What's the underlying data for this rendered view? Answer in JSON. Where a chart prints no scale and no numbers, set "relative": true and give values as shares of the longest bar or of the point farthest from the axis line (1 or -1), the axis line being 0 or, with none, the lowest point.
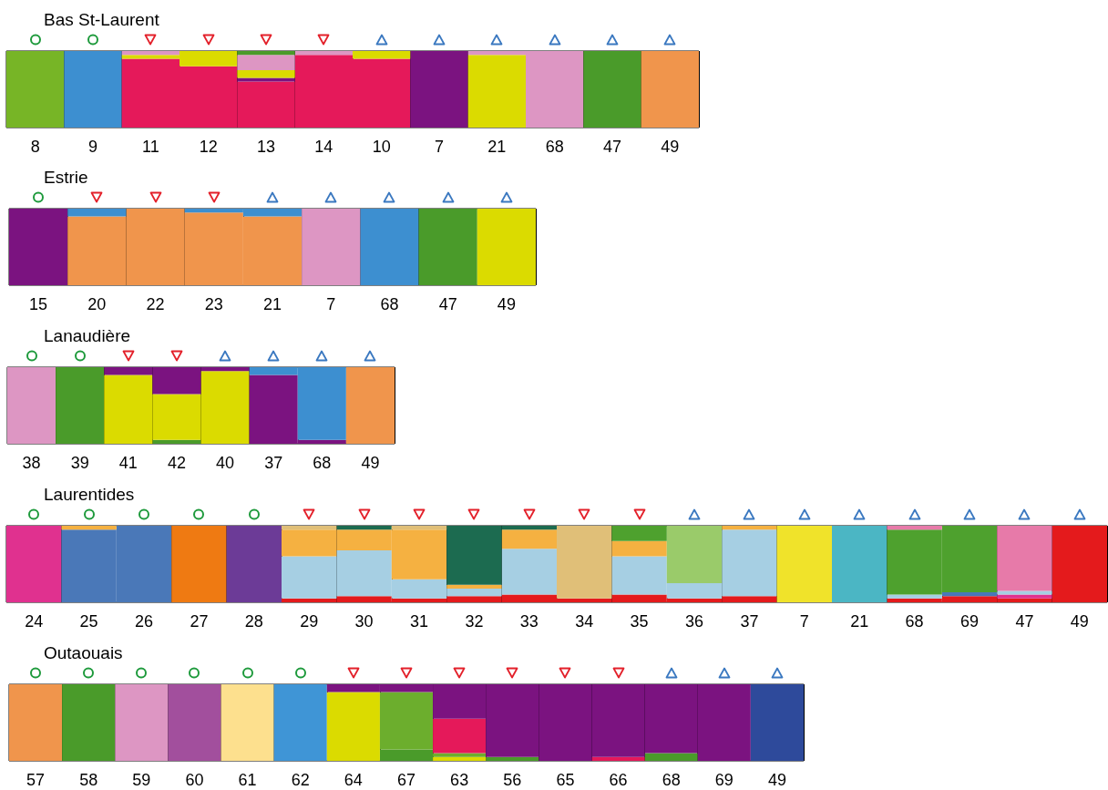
{
  "chart_data": [
    {
      "type": "bar",
      "title": "Bas St-Laurent",
      "stacked": true,
      "relative": true,
      "grid": "x",
      "categories": [
        "8",
        "9",
        "11",
        "12",
        "13",
        "14",
        "10",
        "7",
        "21",
        "68",
        "47",
        "49"
      ],
      "series": [
        {
          "color": "#77b526",
          "values": [
            1,
            0,
            0,
            0,
            0,
            0,
            0,
            0,
            0,
            0,
            0,
            0
          ]
        },
        {
          "color": "#3d8fd0",
          "values": [
            0,
            1,
            0,
            0,
            0,
            0,
            0,
            0,
            0,
            0,
            0,
            0
          ]
        },
        {
          "color": "#e5195a",
          "values": [
            0,
            0,
            0.9,
            0.8,
            0.6,
            0.95,
            0.9,
            0,
            0,
            0,
            0,
            0
          ]
        },
        {
          "color": "#7b1380",
          "values": [
            0,
            0,
            0,
            0,
            0.05,
            0,
            0,
            1,
            0,
            0,
            0,
            0
          ]
        },
        {
          "color": "#dbdb00",
          "values": [
            0,
            0,
            0.05,
            0.2,
            0.1,
            0,
            0.1,
            0,
            0.95,
            0,
            0,
            0
          ]
        },
        {
          "color": "#dd96c3",
          "values": [
            0,
            0,
            0.05,
            0,
            0.2,
            0.05,
            0,
            0,
            0.05,
            1,
            0,
            0
          ]
        },
        {
          "color": "#4a9b2a",
          "values": [
            0,
            0,
            0,
            0,
            0.05,
            0,
            0,
            0,
            0,
            0,
            1,
            0
          ]
        },
        {
          "color": "#f0954c",
          "values": [
            0,
            0,
            0,
            0,
            0,
            0,
            0,
            0,
            0,
            0,
            0,
            1
          ]
        }
      ]
    },
    {
      "type": "bar",
      "title": "Estrie",
      "stacked": true,
      "relative": true,
      "grid": "x",
      "categories": [
        "15",
        "20",
        "22",
        "23",
        "21",
        "7",
        "68",
        "47",
        "49"
      ],
      "series": [
        {
          "color": "#7b1380",
          "values": [
            1,
            0,
            0,
            0,
            0,
            0,
            0,
            0,
            0
          ]
        },
        {
          "color": "#f0954c",
          "values": [
            0,
            0.9,
            1,
            0.95,
            0.9,
            0,
            0,
            0,
            0
          ]
        },
        {
          "color": "#3d8fd0",
          "values": [
            0,
            0.1,
            0,
            0.05,
            0.1,
            0,
            1,
            0,
            0
          ]
        },
        {
          "color": "#dd96c3",
          "values": [
            0,
            0,
            0,
            0,
            0,
            1,
            0,
            0,
            0
          ]
        },
        {
          "color": "#4a9b2a",
          "values": [
            0,
            0,
            0,
            0,
            0,
            0,
            0,
            1,
            0
          ]
        },
        {
          "color": "#dbdb00",
          "values": [
            0,
            0,
            0,
            0,
            0,
            0,
            0,
            0,
            1
          ]
        }
      ]
    },
    {
      "type": "bar",
      "title": "Lanaudière",
      "stacked": true,
      "relative": true,
      "grid": "x",
      "categories": [
        "38",
        "39",
        "41",
        "42",
        "40",
        "37",
        "68",
        "49"
      ],
      "series": [
        {
          "color": "#dd96c3",
          "values": [
            1,
            0,
            0,
            0,
            0,
            0,
            0,
            0
          ]
        },
        {
          "color": "#4a9b2a",
          "values": [
            0,
            1,
            0,
            0.05,
            0,
            0,
            0,
            0
          ]
        },
        {
          "color": "#dbdb00",
          "values": [
            0,
            0,
            0.9,
            0.6,
            0.95,
            0,
            0,
            0
          ]
        },
        {
          "color": "#7b1380",
          "values": [
            0,
            0,
            0.1,
            0.35,
            0.05,
            0.9,
            0.05,
            0
          ]
        },
        {
          "color": "#3d8fd0",
          "values": [
            0,
            0,
            0,
            0,
            0,
            0.1,
            0.95,
            0
          ]
        },
        {
          "color": "#f0954c",
          "values": [
            0,
            0,
            0,
            0,
            0,
            0,
            0,
            1
          ]
        }
      ]
    },
    {
      "type": "bar",
      "title": "Laurentides",
      "stacked": true,
      "relative": true,
      "grid": "x",
      "categories": [
        "24",
        "25",
        "26",
        "27",
        "28",
        "29",
        "30",
        "31",
        "32",
        "33",
        "34",
        "35",
        "36",
        "37",
        "7",
        "21",
        "68",
        "69",
        "47",
        "49"
      ],
      "series": [
        {
          "color": "#e41a1c",
          "values": [
            0,
            0,
            0,
            0,
            0,
            0.05,
            0.08,
            0.05,
            0.08,
            0.1,
            0.05,
            0.1,
            0.05,
            0.08,
            0,
            0,
            0.05,
            0.08,
            0.05,
            1
          ]
        },
        {
          "color": "#e0318f",
          "values": [
            1,
            0,
            0,
            0,
            0,
            0,
            0,
            0,
            0,
            0,
            0,
            0,
            0,
            0,
            0,
            0,
            0,
            0,
            0.05,
            0
          ]
        },
        {
          "color": "#4a78b8",
          "values": [
            0,
            0.95,
            1,
            0,
            0,
            0,
            0,
            0,
            0,
            0,
            0,
            0,
            0,
            0,
            0,
            0,
            0,
            0.05,
            0,
            0
          ]
        },
        {
          "color": "#ef7a12",
          "values": [
            0,
            0,
            0,
            1,
            0,
            0,
            0,
            0,
            0,
            0,
            0,
            0,
            0,
            0,
            0,
            0,
            0,
            0,
            0,
            0
          ]
        },
        {
          "color": "#6c3b97",
          "values": [
            0,
            0,
            0,
            0,
            1,
            0,
            0,
            0,
            0,
            0,
            0,
            0,
            0,
            0,
            0,
            0,
            0,
            0,
            0,
            0
          ]
        },
        {
          "color": "#a6cfe3",
          "values": [
            0,
            0,
            0,
            0,
            0,
            0.55,
            0.6,
            0.25,
            0.1,
            0.6,
            0,
            0.5,
            0.2,
            0.87,
            0,
            0,
            0.05,
            0,
            0.05,
            0
          ]
        },
        {
          "color": "#f5b141",
          "values": [
            0,
            0.05,
            0,
            0,
            0,
            0.35,
            0.27,
            0.65,
            0.05,
            0.25,
            0,
            0.2,
            0,
            0.05,
            0,
            0,
            0,
            0,
            0,
            0
          ]
        },
        {
          "color": "#1c6b50",
          "values": [
            0,
            0,
            0,
            0,
            0,
            0,
            0.05,
            0,
            0.77,
            0.05,
            0,
            0,
            0,
            0,
            0,
            0,
            0,
            0,
            0,
            0
          ]
        },
        {
          "color": "#e0bf78",
          "values": [
            0,
            0,
            0,
            0,
            0,
            0.05,
            0,
            0.05,
            0,
            0,
            0.95,
            0,
            0,
            0,
            0,
            0,
            0,
            0,
            0,
            0
          ]
        },
        {
          "color": "#9acb6a",
          "values": [
            0,
            0,
            0,
            0,
            0,
            0,
            0,
            0,
            0,
            0,
            0,
            0,
            0.75,
            0,
            0,
            0,
            0,
            0,
            0,
            0
          ]
        },
        {
          "color": "#f0e32a",
          "values": [
            0,
            0,
            0,
            0,
            0,
            0,
            0,
            0,
            0,
            0,
            0,
            0,
            0,
            0,
            1,
            0,
            0,
            0,
            0,
            0
          ]
        },
        {
          "color": "#4bb6c4",
          "values": [
            0,
            0,
            0,
            0,
            0,
            0,
            0,
            0,
            0,
            0,
            0,
            0,
            0,
            0,
            0,
            1,
            0,
            0,
            0,
            0
          ]
        },
        {
          "color": "#4ea12e",
          "values": [
            0,
            0,
            0,
            0,
            0,
            0,
            0,
            0,
            0,
            0,
            0,
            0.2,
            0,
            0,
            0,
            0,
            0.85,
            0.87,
            0,
            0
          ]
        },
        {
          "color": "#e77aa9",
          "values": [
            0,
            0,
            0,
            0,
            0,
            0,
            0,
            0,
            0,
            0,
            0,
            0,
            0,
            0,
            0,
            0,
            0.05,
            0,
            0.85,
            0
          ]
        }
      ]
    },
    {
      "type": "bar",
      "title": "Outaouais",
      "stacked": true,
      "relative": true,
      "grid": "x",
      "categories": [
        "57",
        "58",
        "59",
        "60",
        "61",
        "62",
        "64",
        "67",
        "63",
        "56",
        "65",
        "66",
        "68",
        "69",
        "49"
      ],
      "series": [
        {
          "color": "#f0954c",
          "values": [
            1,
            0,
            0,
            0,
            0,
            0,
            0,
            0,
            0,
            0,
            0,
            0,
            0,
            0,
            0
          ]
        },
        {
          "color": "#4a9b2a",
          "values": [
            0,
            1,
            0,
            0,
            0,
            0,
            0,
            0.15,
            0,
            0.05,
            0,
            0,
            0.1,
            0,
            0
          ]
        },
        {
          "color": "#dd96c3",
          "values": [
            0,
            0,
            1,
            0,
            0,
            0,
            0,
            0,
            0,
            0,
            0,
            0,
            0,
            0,
            0
          ]
        },
        {
          "color": "#a24f9d",
          "values": [
            0,
            0,
            0,
            1,
            0,
            0,
            0,
            0,
            0,
            0,
            0,
            0,
            0,
            0,
            0
          ]
        },
        {
          "color": "#fde08e",
          "values": [
            0,
            0,
            0,
            0,
            1,
            0,
            0,
            0,
            0,
            0,
            0,
            0,
            0,
            0,
            0
          ]
        },
        {
          "color": "#3f95d6",
          "values": [
            0,
            0,
            0,
            0,
            0,
            1,
            0,
            0,
            0,
            0,
            0,
            0,
            0,
            0,
            0
          ]
        },
        {
          "color": "#dbdb00",
          "values": [
            0,
            0,
            0,
            0,
            0,
            0,
            0.9,
            0,
            0.05,
            0,
            0,
            0,
            0,
            0,
            0
          ]
        },
        {
          "color": "#6cae2d",
          "values": [
            0,
            0,
            0,
            0,
            0,
            0,
            0,
            0.75,
            0.05,
            0,
            0,
            0,
            0,
            0,
            0
          ]
        },
        {
          "color": "#e5195a",
          "values": [
            0,
            0,
            0,
            0,
            0,
            0,
            0,
            0,
            0.45,
            0,
            0,
            0.05,
            0,
            0,
            0
          ]
        },
        {
          "color": "#7b1380",
          "values": [
            0,
            0,
            0,
            0,
            0,
            0,
            0.1,
            0.1,
            0.45,
            0.95,
            1,
            0.95,
            0.9,
            1,
            0
          ]
        },
        {
          "color": "#2e4a9b",
          "values": [
            0,
            0,
            0,
            0,
            0,
            0,
            0,
            0,
            0,
            0,
            0,
            0,
            0,
            0,
            1
          ]
        }
      ]
    }
  ]
}
